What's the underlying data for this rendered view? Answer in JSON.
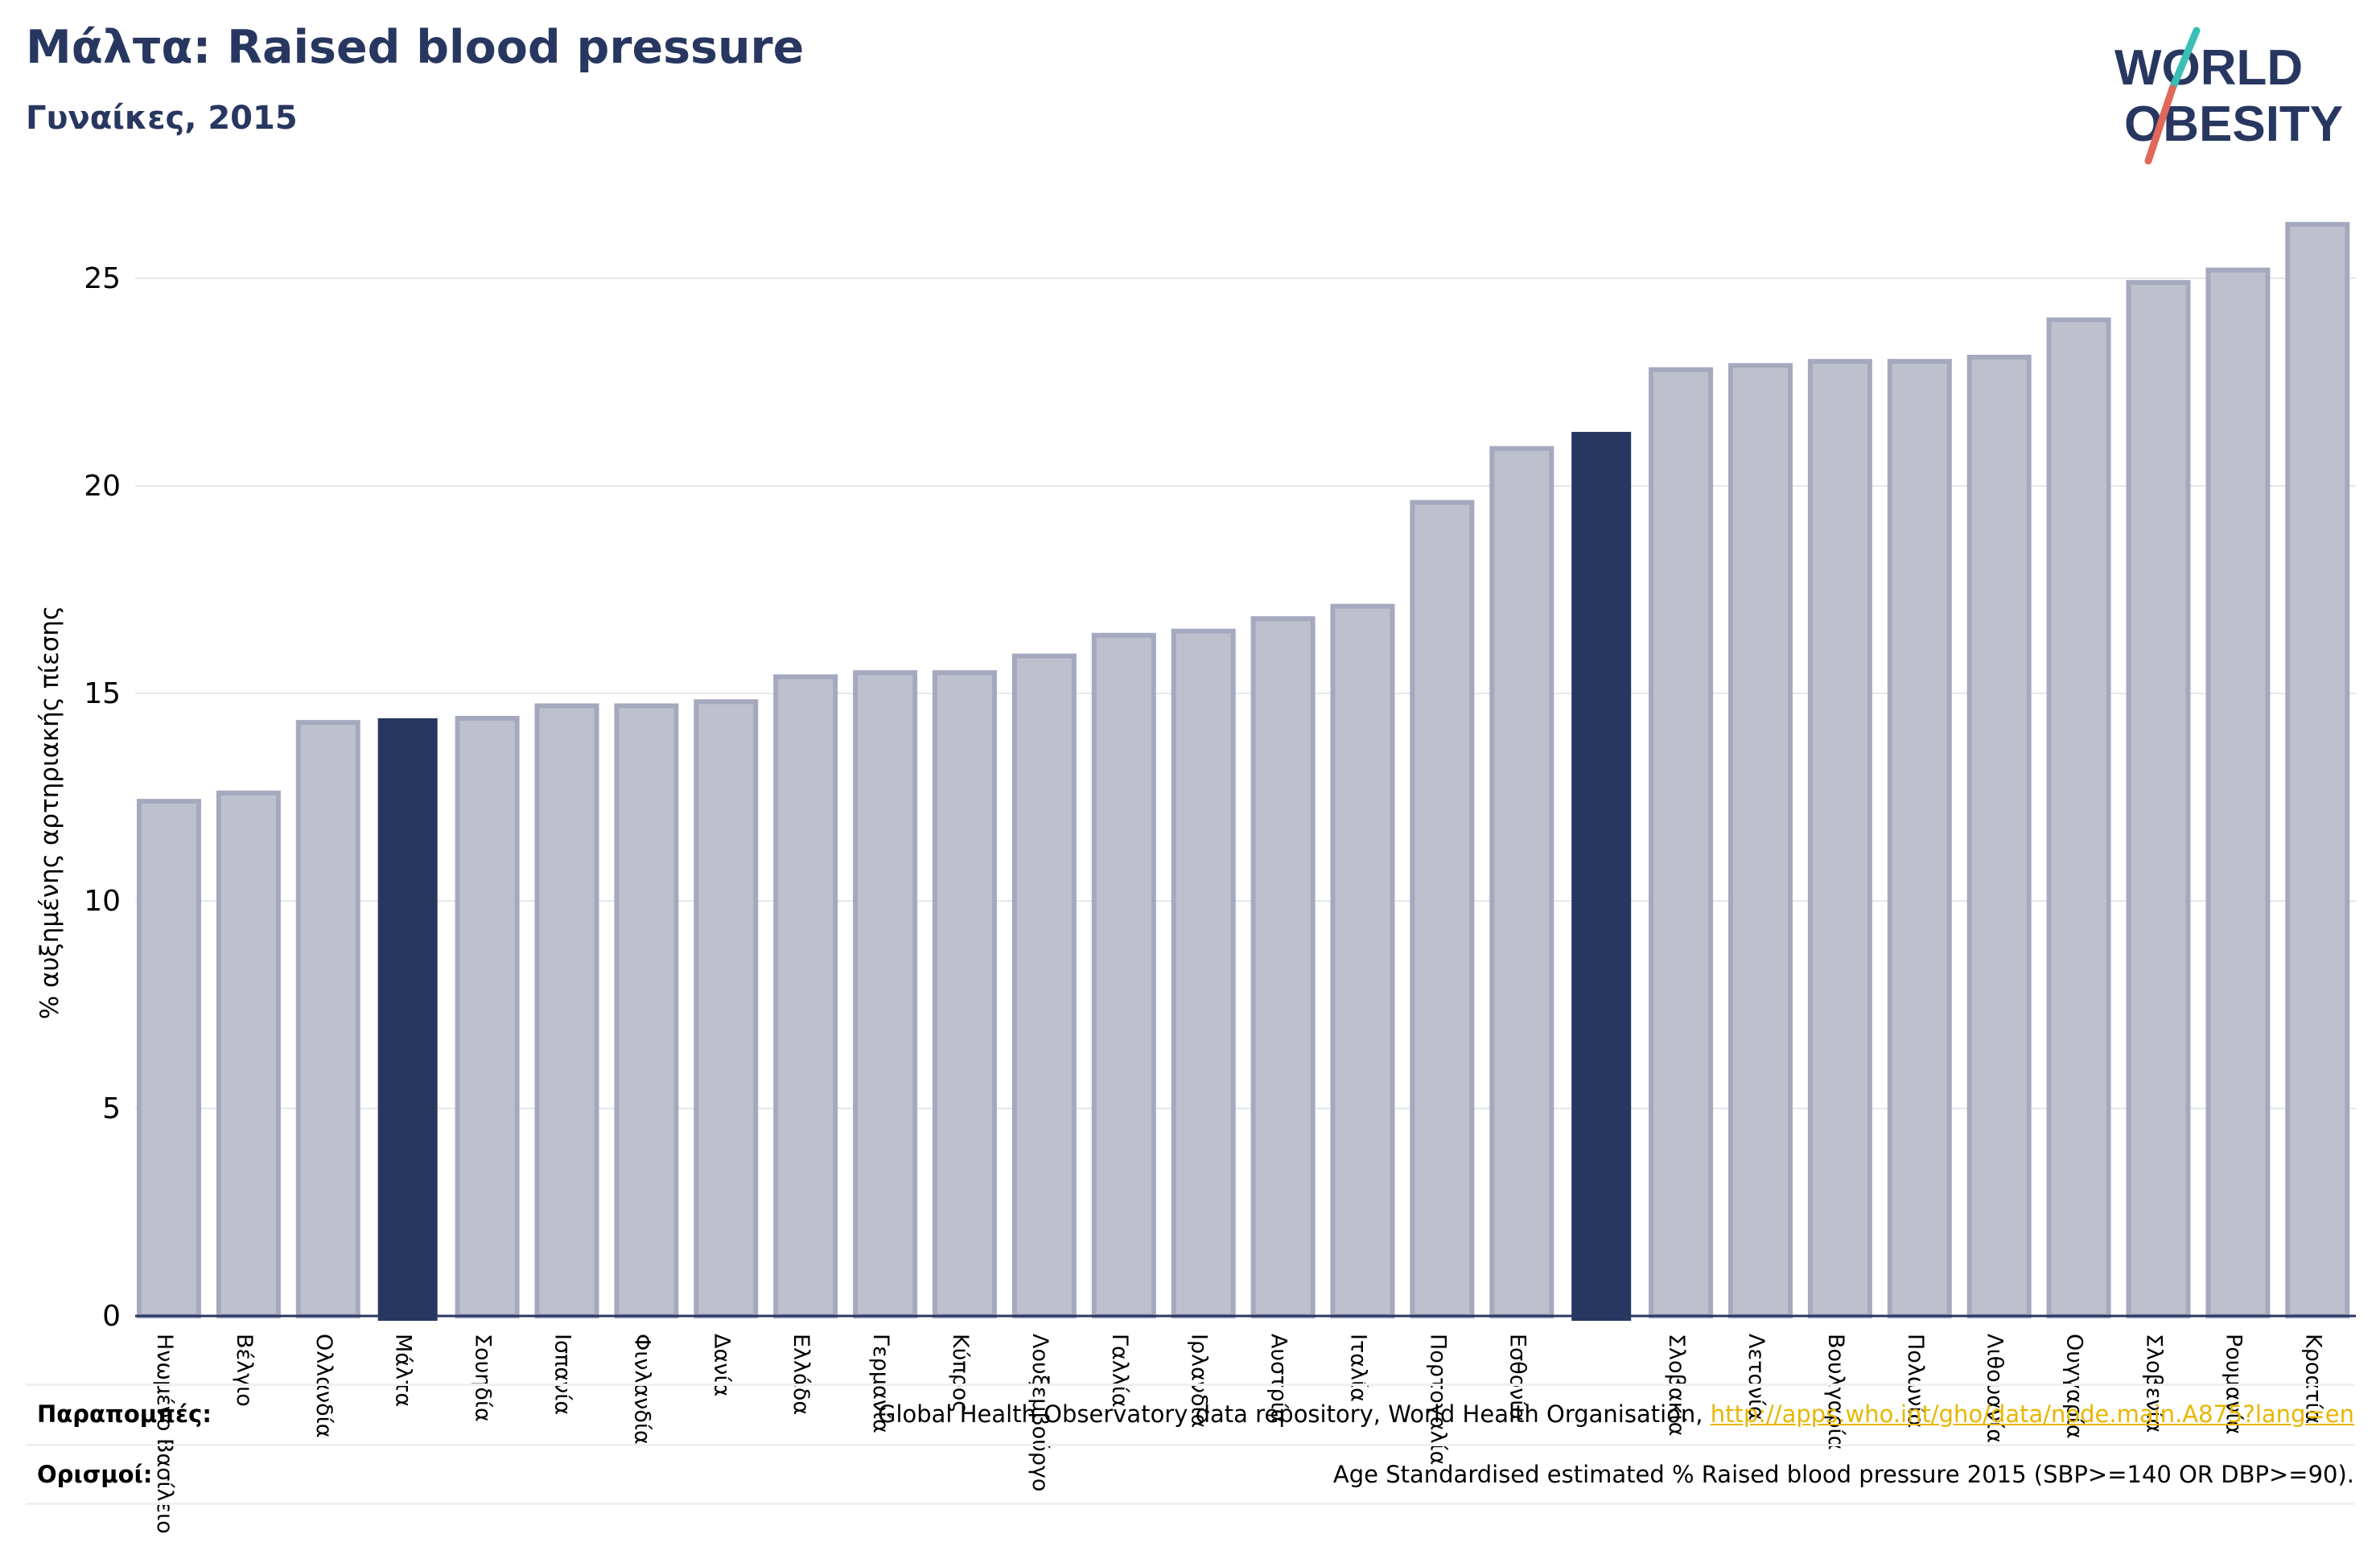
{
  "header": {
    "title": "Μάλτα: Raised blood pressure",
    "subtitle": "Γυναίκες, 2015"
  },
  "logo": {
    "line1": "WORLD",
    "line2": "OBESITY",
    "colors": {
      "text": "#283760",
      "slash_top": "#3bbfb4",
      "slash_bottom": "#e0685a"
    }
  },
  "colors": {
    "bar_fill": "#bec1cd",
    "bar_stroke": "#a5a9bf",
    "highlight": "#283760",
    "grid": "#e5e7eb",
    "axis": "#283760",
    "text": "#283760",
    "link": "#e8b600"
  },
  "chart_data": {
    "type": "bar",
    "ylabel": "% αυξημένης αρτηριακής πίεσης",
    "ylim": [
      0,
      27
    ],
    "yticks": [
      0,
      5,
      10,
      15,
      20,
      25
    ],
    "grid": true,
    "categories": [
      "Ηνωμένο Βασίλειο",
      "Βέλγιο",
      "Ολλανδία",
      "Μάλτα",
      "Σουηδία",
      "Ισπανία",
      "Φινλανδία",
      "Δανία",
      "Ελλάδα",
      "Γερμανία",
      "Κύπρος",
      "Λουξεμβούργο",
      "Γαλλία",
      "Ιρλανδία",
      "Αυστρία",
      "Ιταλία",
      "Πορτογαλία",
      "Εσθονία",
      "",
      "Σλοβακία",
      "Λετονία",
      "Βουλγαρία",
      "Πολωνία",
      "Λιθουανία",
      "Ουγγαρία",
      "Σλοβενία",
      "Ρουμανία",
      "Κροατία"
    ],
    "values": [
      12.4,
      12.6,
      14.3,
      14.4,
      14.4,
      14.7,
      14.7,
      14.8,
      15.4,
      15.5,
      15.5,
      15.9,
      16.4,
      16.5,
      16.8,
      17.1,
      19.6,
      20.9,
      21.3,
      22.8,
      22.9,
      23.0,
      23.0,
      23.1,
      24.0,
      24.9,
      25.2,
      26.3
    ],
    "highlighted": [
      false,
      false,
      false,
      true,
      false,
      false,
      false,
      false,
      false,
      false,
      false,
      false,
      false,
      false,
      false,
      false,
      false,
      false,
      true,
      false,
      false,
      false,
      false,
      false,
      false,
      false,
      false,
      false
    ]
  },
  "references": [
    {
      "label": "Παραπομπές:",
      "text": "Global Health Observatory data repository, World Health Organisation, ",
      "link": "http://apps.who.int/gho/data/node.main.A875?lang=en"
    },
    {
      "label": "Ορισμοί:",
      "text": "Age Standardised estimated % Raised blood pressure 2015 (SBP>=140 OR DBP>=90).",
      "link": ""
    }
  ]
}
